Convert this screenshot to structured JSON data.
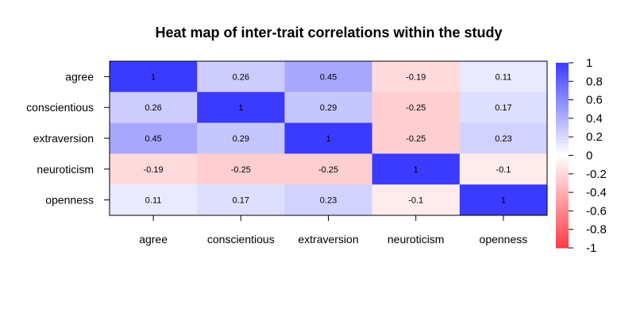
{
  "chart_data": {
    "type": "heatmap",
    "title": "Heat map of inter-trait correlations within the study",
    "rows": [
      "agree",
      "conscientious",
      "extraversion",
      "neuroticism",
      "openness"
    ],
    "columns": [
      "agree",
      "conscientious",
      "extraversion",
      "neuroticism",
      "openness"
    ],
    "values": [
      [
        1,
        0.26,
        0.45,
        -0.19,
        0.11
      ],
      [
        0.26,
        1,
        0.29,
        -0.25,
        0.17
      ],
      [
        0.45,
        0.29,
        1,
        -0.25,
        0.23
      ],
      [
        -0.19,
        -0.25,
        -0.25,
        1,
        -0.1
      ],
      [
        0.11,
        0.17,
        0.23,
        -0.1,
        1
      ]
    ],
    "cell_labels": [
      [
        "1",
        "0.26",
        "0.45",
        "-0.19",
        "0.11"
      ],
      [
        "0.26",
        "1",
        "0.29",
        "-0.25",
        "0.17"
      ],
      [
        "0.45",
        "0.29",
        "1",
        "-0.25",
        "0.23"
      ],
      [
        "-0.19",
        "-0.25",
        "-0.25",
        "1",
        "-0.1"
      ],
      [
        "0.11",
        "0.17",
        "0.23",
        "-0.1",
        "1"
      ]
    ],
    "color_scale": {
      "range": [
        -1,
        1
      ],
      "low_color": "#ff3a45",
      "mid_color": "#ffffff",
      "high_color": "#3b3bff",
      "ticks": [
        "1",
        "0.8",
        "0.6",
        "0.4",
        "0.2",
        "0",
        "-0.2",
        "-0.4",
        "-0.6",
        "-0.8",
        "-1"
      ]
    },
    "legend_position": "right"
  }
}
